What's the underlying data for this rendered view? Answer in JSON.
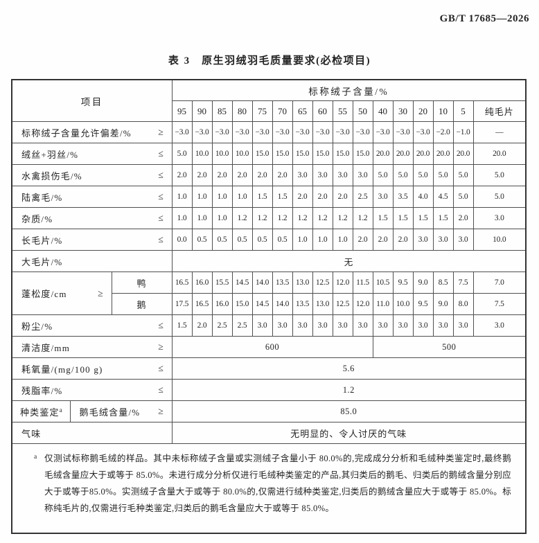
{
  "doc": {
    "standard_code": "GB/T 17685—2026",
    "table_number": "表 3",
    "table_title": "原生羽绒羽毛质量要求(必检项目)"
  },
  "table": {
    "header": {
      "item_label": "项目",
      "group_label": "标称绒子含量/%",
      "columns": [
        "95",
        "90",
        "85",
        "80",
        "75",
        "70",
        "65",
        "60",
        "55",
        "50",
        "40",
        "30",
        "20",
        "10",
        "5"
      ],
      "pure_label": "纯毛片"
    },
    "rows": [
      {
        "type": "values",
        "label": "标称绒子含量允许偏差/%",
        "symbol": "≥",
        "values": [
          "−3.0",
          "−3.0",
          "−3.0",
          "−3.0",
          "−3.0",
          "−3.0",
          "−3.0",
          "−3.0",
          "−3.0",
          "−3.0",
          "−3.0",
          "−3.0",
          "−3.0",
          "−2.0",
          "−1.0",
          "—"
        ]
      },
      {
        "type": "values",
        "label": "绒丝+羽丝/%",
        "symbol": "≤",
        "values": [
          "5.0",
          "10.0",
          "10.0",
          "10.0",
          "15.0",
          "15.0",
          "15.0",
          "15.0",
          "15.0",
          "15.0",
          "20.0",
          "20.0",
          "20.0",
          "20.0",
          "20.0",
          "20.0"
        ]
      },
      {
        "type": "values",
        "label": "水禽损伤毛/%",
        "symbol": "≤",
        "values": [
          "2.0",
          "2.0",
          "2.0",
          "2.0",
          "2.0",
          "2.0",
          "3.0",
          "3.0",
          "3.0",
          "3.0",
          "5.0",
          "5.0",
          "5.0",
          "5.0",
          "5.0",
          "5.0"
        ]
      },
      {
        "type": "values",
        "label": "陆禽毛/%",
        "symbol": "≤",
        "values": [
          "1.0",
          "1.0",
          "1.0",
          "1.0",
          "1.5",
          "1.5",
          "2.0",
          "2.0",
          "2.0",
          "2.5",
          "3.0",
          "3.5",
          "4.0",
          "4.5",
          "5.0",
          "5.0"
        ]
      },
      {
        "type": "values",
        "label": "杂质/%",
        "symbol": "≤",
        "values": [
          "1.0",
          "1.0",
          "1.0",
          "1.2",
          "1.2",
          "1.2",
          "1.2",
          "1.2",
          "1.2",
          "1.2",
          "1.5",
          "1.5",
          "1.5",
          "1.5",
          "2.0",
          "3.0"
        ]
      },
      {
        "type": "values",
        "label": "长毛片/%",
        "symbol": "≤",
        "values": [
          "0.0",
          "0.5",
          "0.5",
          "0.5",
          "0.5",
          "0.5",
          "1.0",
          "1.0",
          "1.0",
          "2.0",
          "2.0",
          "2.0",
          "3.0",
          "3.0",
          "3.0",
          "10.0"
        ]
      },
      {
        "type": "span",
        "label": "大毛片/%",
        "symbol": "",
        "value": "无"
      },
      {
        "type": "double",
        "label": "蓬松度/cm",
        "symbol": "≥",
        "subrows": [
          {
            "sublabel": "鸭",
            "values": [
              "16.5",
              "16.0",
              "15.5",
              "14.5",
              "14.0",
              "13.5",
              "13.0",
              "12.5",
              "12.0",
              "11.5",
              "10.5",
              "9.5",
              "9.0",
              "8.5",
              "7.5",
              "7.0"
            ]
          },
          {
            "sublabel": "鹅",
            "values": [
              "17.5",
              "16.5",
              "16.0",
              "15.0",
              "14.5",
              "14.0",
              "13.5",
              "13.0",
              "12.5",
              "12.0",
              "11.0",
              "10.0",
              "9.5",
              "9.0",
              "8.0",
              "7.5"
            ]
          }
        ]
      },
      {
        "type": "values",
        "label": "粉尘/%",
        "symbol": "≤",
        "values": [
          "1.5",
          "2.0",
          "2.5",
          "2.5",
          "3.0",
          "3.0",
          "3.0",
          "3.0",
          "3.0",
          "3.0",
          "3.0",
          "3.0",
          "3.0",
          "3.0",
          "3.0",
          "3.0"
        ]
      },
      {
        "type": "split",
        "label": "清洁度/mm",
        "symbol": "≥",
        "left_value": "600",
        "left_span": 10,
        "right_value": "500",
        "right_span": 6
      },
      {
        "type": "span",
        "label": "耗氧量/(mg/100 g)",
        "symbol": "≤",
        "value": "5.6"
      },
      {
        "type": "span",
        "label": "残脂率/%",
        "symbol": "≤",
        "value": "1.2"
      },
      {
        "type": "dual",
        "label": "种类鉴定",
        "label_sup": "a",
        "label2": "鹅毛绒含量/%",
        "symbol": "≥",
        "value": "85.0"
      },
      {
        "type": "span",
        "label": "气味",
        "symbol": "",
        "value": "无明显的、令人讨厌的气味",
        "text": true
      }
    ]
  },
  "footnote": {
    "marker": "a",
    "text": "仅测试标称鹅毛绒的样品。其中未标称绒子含量或实测绒子含量小于 80.0%的,完成成分分析和毛绒种类鉴定时,最终鹅毛绒含量应大于或等于 85.0%。未进行成分分析仅进行毛绒种类鉴定的产品,其归类后的鹅毛、归类后的鹅绒含量分别应大于或等于85.0%。实测绒子含量大于或等于 80.0%的,仅需进行绒种类鉴定,归类后的鹅绒含量应大于或等于 85.0%。标称纯毛片的,仅需进行毛种类鉴定,归类后的鹅毛含量应大于或等于 85.0%。"
  }
}
